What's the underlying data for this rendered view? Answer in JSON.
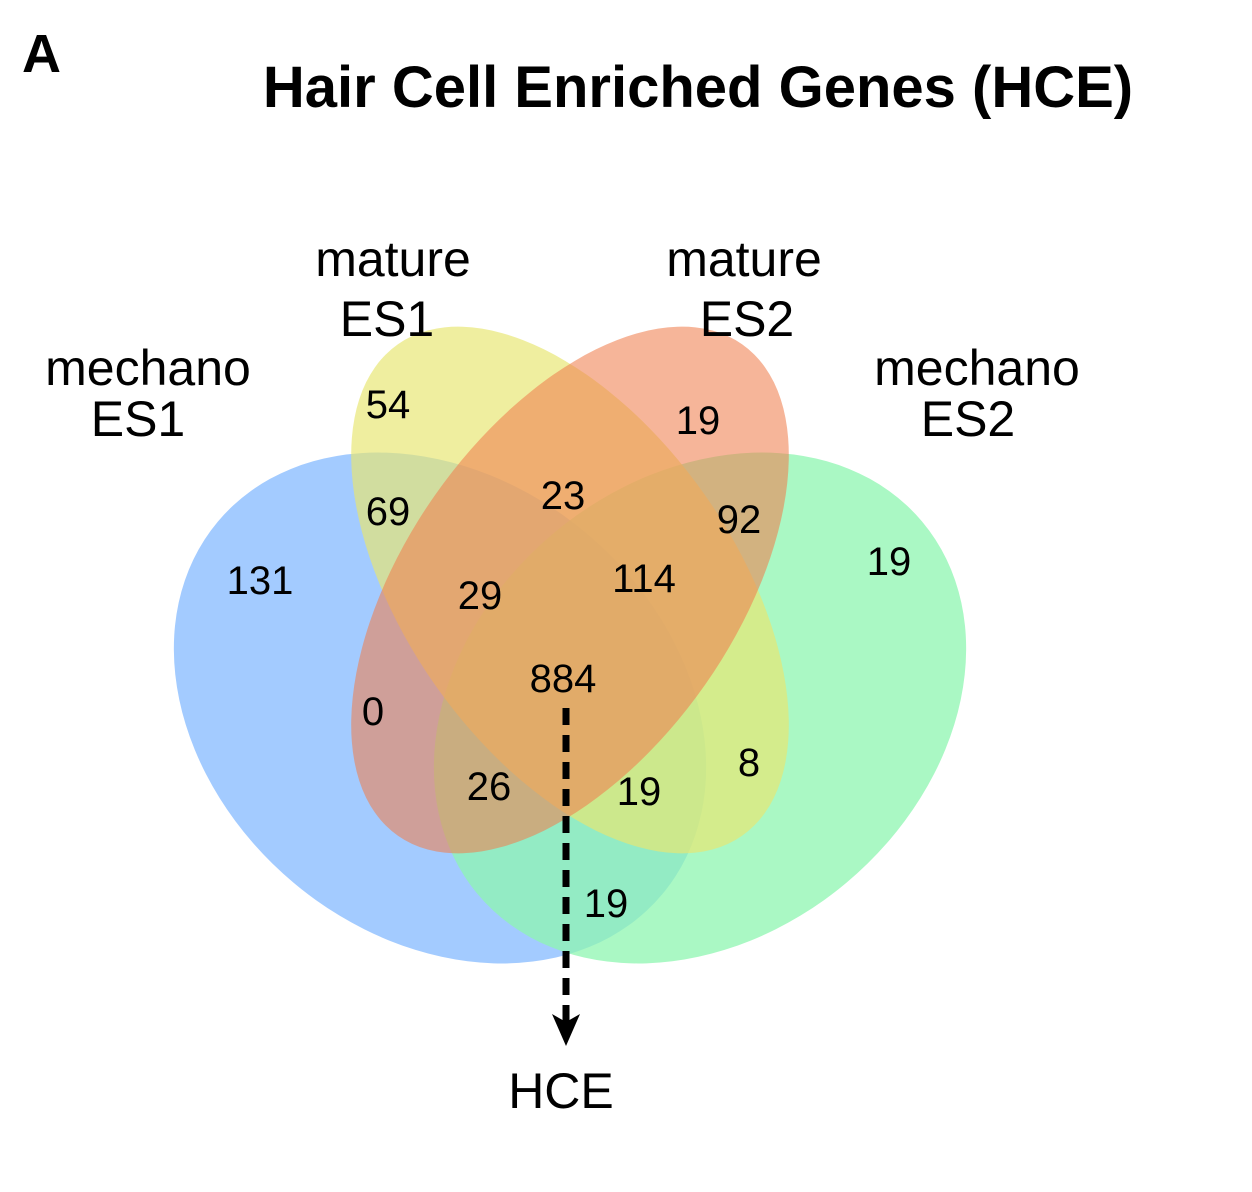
{
  "figure": {
    "panel_letter": "A",
    "title": "Hair Cell Enriched Genes (HCE)"
  },
  "sets": {
    "mechano_es1": {
      "line1": "mechano",
      "line2": "ES1",
      "color": "#8fc0ff"
    },
    "mature_es1": {
      "line1": "mature",
      "line2": "ES1",
      "color": "#e8e672"
    },
    "mature_es2": {
      "line1": "mature",
      "line2": "ES2",
      "color": "#f39e74"
    },
    "mechano_es2": {
      "line1": "mechano",
      "line2": "ES2",
      "color": "#8ef5b0"
    }
  },
  "regions": {
    "only_mechano_es1": "131",
    "only_mature_es1": "54",
    "only_mature_es2": "19",
    "only_mechano_es2": "19",
    "mechano_es1__mature_es1": "69",
    "mature_es1__mature_es2": "23",
    "mature_es2__mechano_es2": "92",
    "mechano_es1__mature_es1__mature_es2": "29",
    "mature_es1__mature_es2__mechano_es2": "114",
    "all_four": "884",
    "mechano_es1__mature_es2": "0",
    "mature_es1__mechano_es2": "8",
    "mechano_es1__mature_es2__mechano_es2": "26",
    "mechano_es1__mature_es1__mechano_es2": "19",
    "mechano_es1__mechano_es2": "19"
  },
  "output": {
    "label": "HCE"
  }
}
